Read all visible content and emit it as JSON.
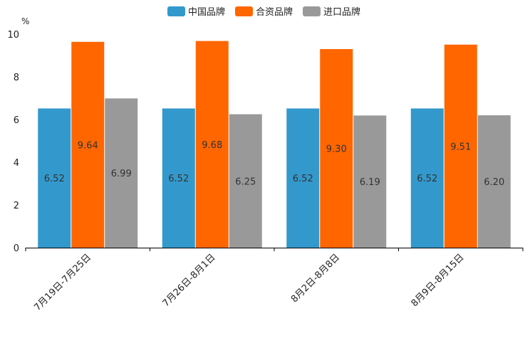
{
  "chart_data": {
    "type": "bar",
    "title": "",
    "unit": "%",
    "xlabel": "",
    "ylabel": "",
    "ylim": [
      0,
      10
    ],
    "yticks": [
      0,
      2,
      4,
      6,
      8,
      10
    ],
    "ytick_labels": [
      "0",
      "2",
      "4",
      "6",
      "8",
      "10"
    ],
    "grid": false,
    "legend_position": "top-center",
    "categories": [
      "7月19日-7月25日",
      "7月26日-8月1日",
      "8月2日-8月8日",
      "8月9日-8月15日"
    ],
    "series": [
      {
        "name": "中国品牌",
        "color": "#3399CC",
        "values": [
          6.52,
          6.52,
          6.52,
          6.52
        ],
        "labels": [
          "6.52",
          "6.52",
          "6.52",
          "6.52"
        ]
      },
      {
        "name": "合资品牌",
        "color": "#FF6600",
        "values": [
          9.64,
          9.68,
          9.3,
          9.51
        ],
        "labels": [
          "9.64",
          "9.68",
          "9.30",
          "9.51"
        ]
      },
      {
        "name": "进口品牌",
        "color": "#999999",
        "values": [
          6.99,
          6.25,
          6.19,
          6.2
        ],
        "labels": [
          "6.99",
          "6.25",
          "6.19",
          "6.20"
        ]
      }
    ]
  }
}
